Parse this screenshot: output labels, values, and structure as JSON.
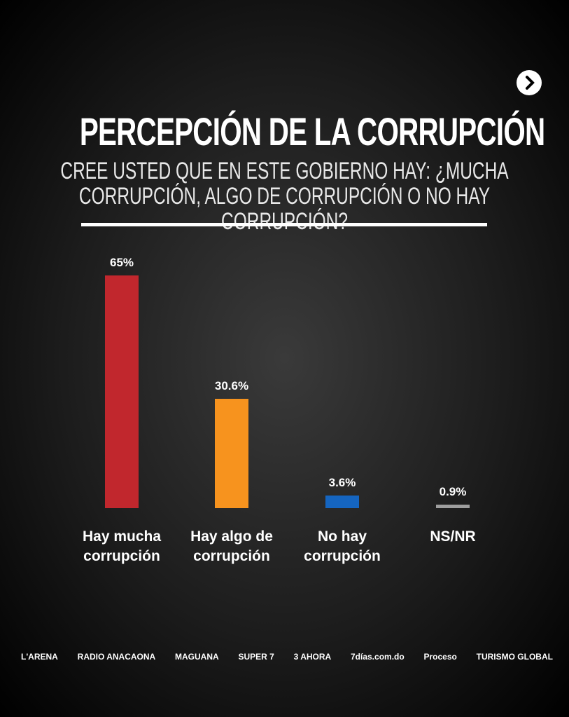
{
  "chart_data": {
    "type": "bar",
    "title": "PERCEPCIÓN DE LA CORRUPCIÓN",
    "subtitle": "CREE USTED QUE EN ESTE GOBIERNO HAY: ¿MUCHA CORRUPCIÓN, ALGO DE CORRUPCIÓN O NO HAY CORRUPCIÓN?",
    "categories": [
      "Hay mucha corrupción",
      "Hay algo de corrupción",
      "No hay corrupción",
      "NS/NR"
    ],
    "values": [
      65,
      30.6,
      3.6,
      0.9
    ],
    "value_labels": [
      "65%",
      "30.6%",
      "3.6%",
      "0.9%"
    ],
    "colors": [
      "#c1272d",
      "#f7931e",
      "#1565c0",
      "#9e9e9e"
    ]
  },
  "sources": [
    "L'ARENA",
    "RADIO ANACAONA",
    "MAGUANA",
    "SUPER 7",
    "3 AHORA",
    "7días.com.do",
    "Proceso",
    "TURISMO GLOBAL"
  ]
}
